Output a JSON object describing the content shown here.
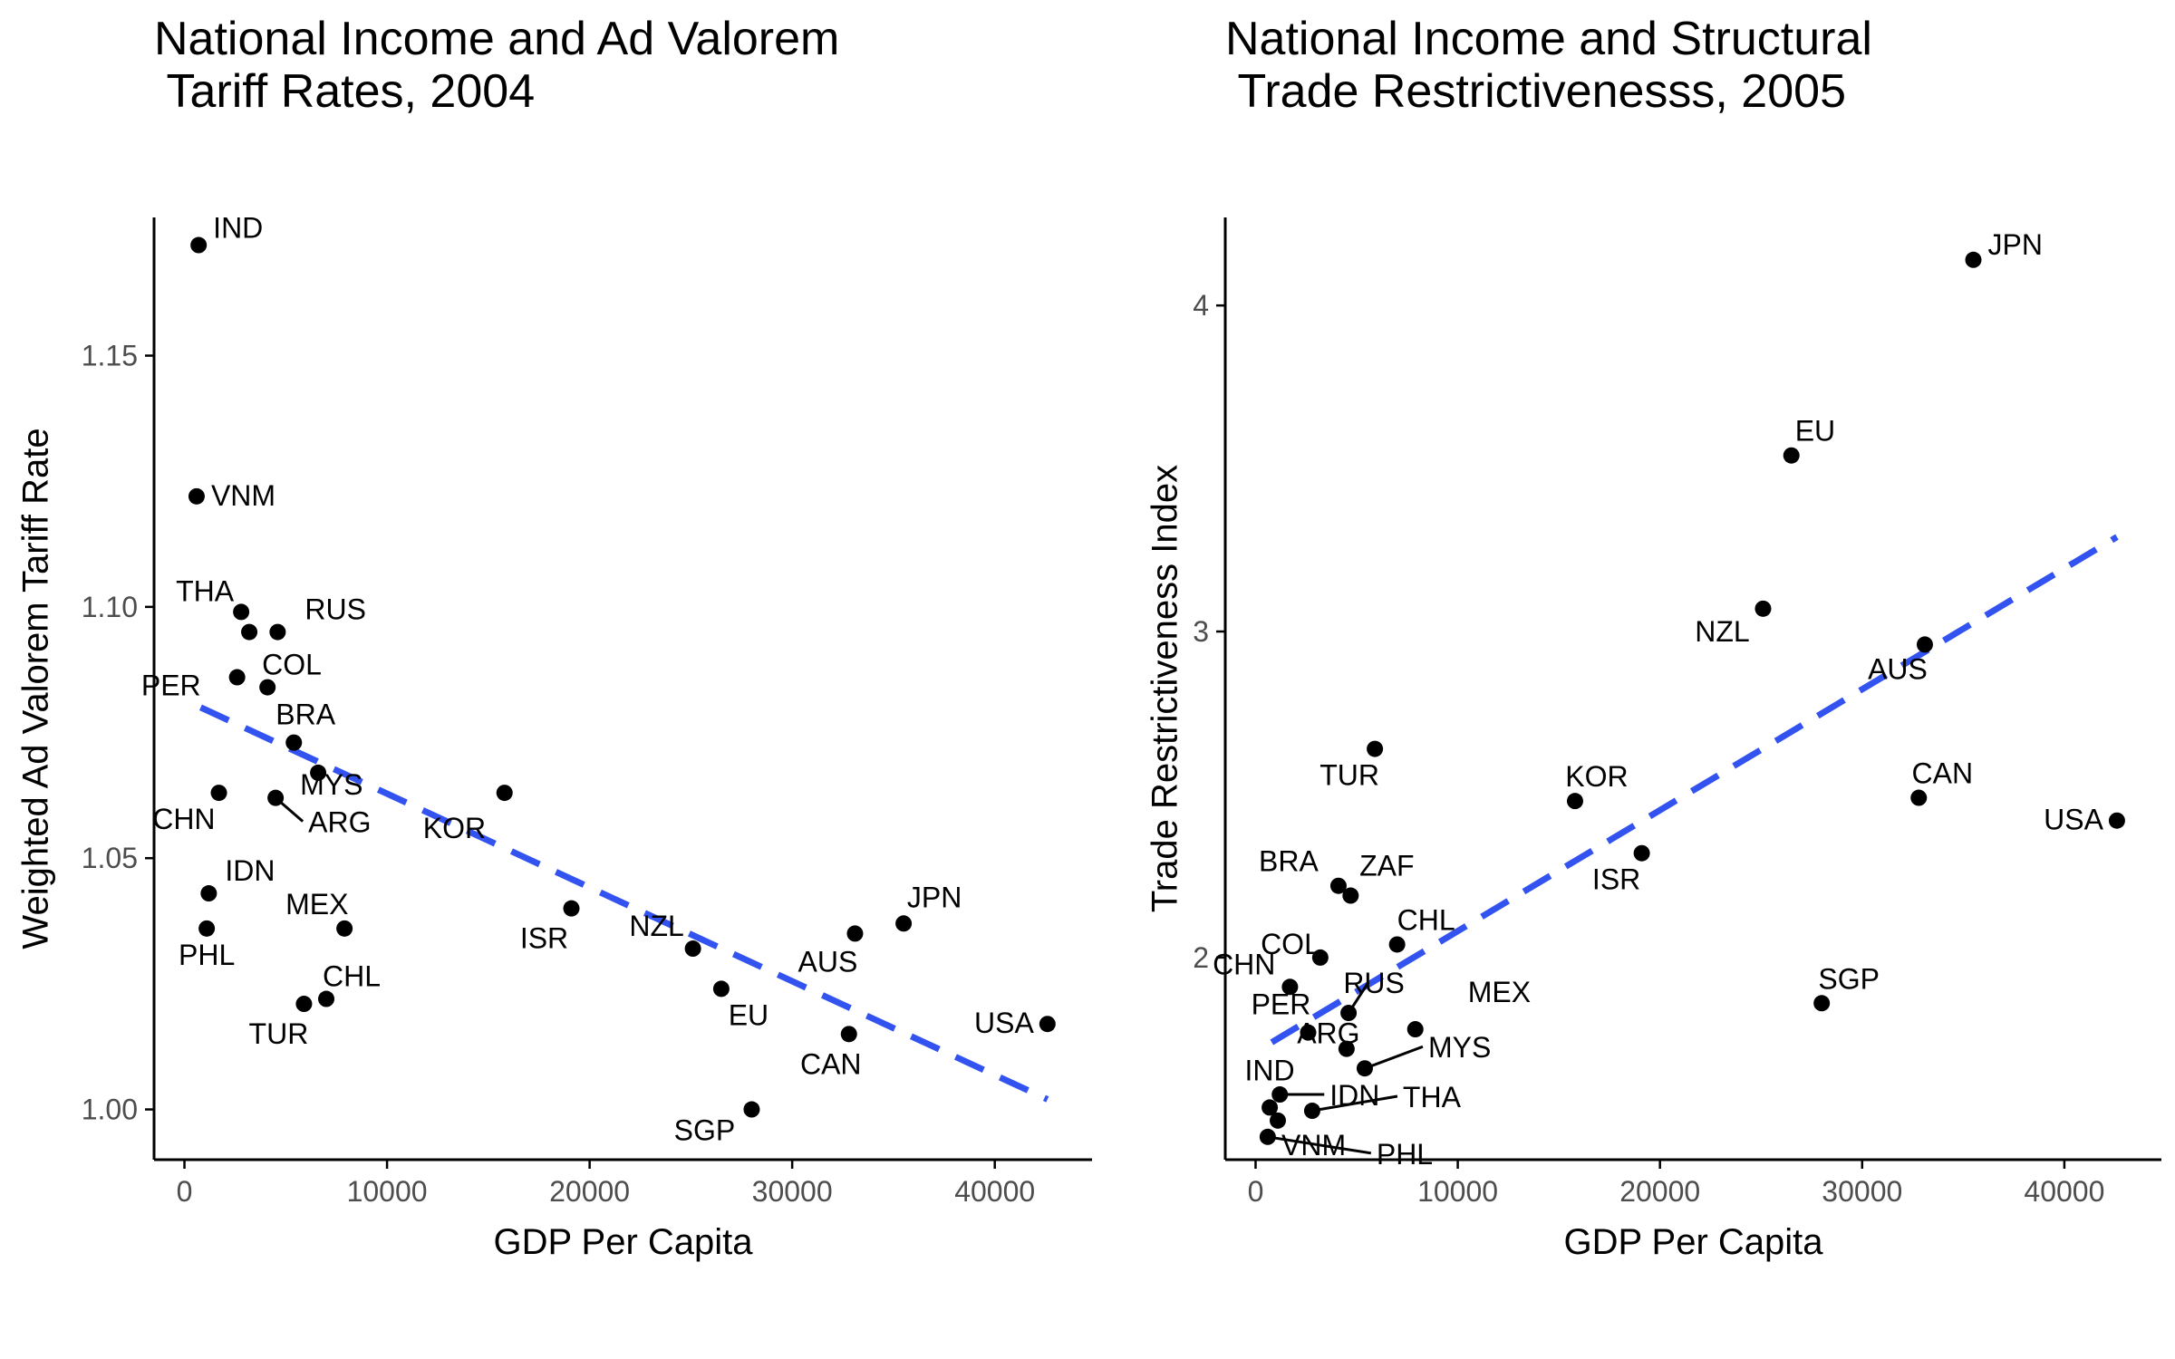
{
  "colors": {
    "point": "#000000",
    "trend": "#3353f0",
    "axis": "#000000",
    "tick_text": "#4d4d4d"
  },
  "chart_data": [
    {
      "type": "scatter",
      "title_line1": "National Income and Ad Valorem",
      "title_line2": " Tariff Rates, 2004",
      "xlabel": "GDP Per Capita",
      "ylabel": "Weighted Ad Valorem Tariff Rate",
      "xlim": [
        -1500,
        44800
      ],
      "ylim": [
        0.99,
        1.1775
      ],
      "xticks": [
        0,
        10000,
        20000,
        30000,
        40000
      ],
      "xtick_labels": [
        "0",
        "10000",
        "20000",
        "30000",
        "40000"
      ],
      "yticks": [
        1.0,
        1.05,
        1.1,
        1.15
      ],
      "ytick_labels": [
        "1.00",
        "1.05",
        "1.10",
        "1.15"
      ],
      "grid": false,
      "trend": {
        "style": "dashed",
        "x": [
          800,
          42600
        ],
        "y": [
          1.08,
          1.002
        ]
      },
      "points": [
        {
          "label": "IND",
          "x": 700,
          "y": 1.172
        },
        {
          "label": "VNM",
          "x": 600,
          "y": 1.122
        },
        {
          "label": "THA",
          "x": 2800,
          "y": 1.099
        },
        {
          "label": "RUS",
          "x": 4600,
          "y": 1.095
        },
        {
          "label": "",
          "x": 3200,
          "y": 1.095
        },
        {
          "label": "COL",
          "x": 4100,
          "y": 1.084
        },
        {
          "label": "PER",
          "x": 2600,
          "y": 1.086
        },
        {
          "label": "BRA",
          "x": 5400,
          "y": 1.073
        },
        {
          "label": "MYS",
          "x": 6600,
          "y": 1.067
        },
        {
          "label": "CHN",
          "x": 1700,
          "y": 1.063
        },
        {
          "label": "ARG",
          "x": 4500,
          "y": 1.062
        },
        {
          "label": "KOR",
          "x": 15800,
          "y": 1.063
        },
        {
          "label": "IDN",
          "x": 1200,
          "y": 1.043
        },
        {
          "label": "PHL",
          "x": 1100,
          "y": 1.036
        },
        {
          "label": "MEX",
          "x": 7900,
          "y": 1.036
        },
        {
          "label": "ISR",
          "x": 19100,
          "y": 1.04
        },
        {
          "label": "NZL",
          "x": 25100,
          "y": 1.032
        },
        {
          "label": "AUS",
          "x": 33100,
          "y": 1.035
        },
        {
          "label": "JPN",
          "x": 35500,
          "y": 1.037
        },
        {
          "label": "CHL",
          "x": 7000,
          "y": 1.022
        },
        {
          "label": "TUR",
          "x": 5900,
          "y": 1.021
        },
        {
          "label": "EU",
          "x": 26500,
          "y": 1.024
        },
        {
          "label": "USA",
          "x": 42600,
          "y": 1.017
        },
        {
          "label": "CAN",
          "x": 32800,
          "y": 1.015
        },
        {
          "label": "SGP",
          "x": 28000,
          "y": 1.0
        }
      ]
    },
    {
      "type": "scatter",
      "title_line1": "National Income and Structural",
      "title_line2": " Trade Restrictivenesss, 2005",
      "xlabel": "GDP Per Capita",
      "ylabel": "Trade Restrictiveness Index",
      "xlim": [
        -1500,
        44800
      ],
      "ylim": [
        1.38,
        4.27
      ],
      "xticks": [
        0,
        10000,
        20000,
        30000,
        40000
      ],
      "xtick_labels": [
        "0",
        "10000",
        "20000",
        "30000",
        "40000"
      ],
      "yticks": [
        2,
        3,
        4
      ],
      "ytick_labels": [
        "2",
        "3",
        "4"
      ],
      "grid": false,
      "trend": {
        "style": "dashed",
        "x": [
          800,
          42600
        ],
        "y": [
          1.74,
          3.29
        ]
      },
      "points": [
        {
          "label": "JPN",
          "x": 35500,
          "y": 4.14
        },
        {
          "label": "EU",
          "x": 26500,
          "y": 3.54
        },
        {
          "label": "NZL",
          "x": 25100,
          "y": 3.07
        },
        {
          "label": "AUS",
          "x": 33100,
          "y": 2.96
        },
        {
          "label": "TUR",
          "x": 5900,
          "y": 2.64
        },
        {
          "label": "KOR",
          "x": 15800,
          "y": 2.48
        },
        {
          "label": "CAN",
          "x": 32800,
          "y": 2.49
        },
        {
          "label": "USA",
          "x": 42600,
          "y": 2.42
        },
        {
          "label": "ISR",
          "x": 19100,
          "y": 2.32
        },
        {
          "label": "BRA",
          "x": 4100,
          "y": 2.22
        },
        {
          "label": "ZAF",
          "x": 4700,
          "y": 2.19
        },
        {
          "label": "CHL",
          "x": 7000,
          "y": 2.04
        },
        {
          "label": "COL",
          "x": 3200,
          "y": 2.0
        },
        {
          "label": "CHN",
          "x": 1700,
          "y": 1.91
        },
        {
          "label": "RUS",
          "x": 4600,
          "y": 1.83
        },
        {
          "label": "SGP",
          "x": 28000,
          "y": 1.86
        },
        {
          "label": "PER",
          "x": 2600,
          "y": 1.77
        },
        {
          "label": "ARG",
          "x": 4500,
          "y": 1.72
        },
        {
          "label": "MEX",
          "x": 7900,
          "y": 1.78
        },
        {
          "label": "MYS",
          "x": 5400,
          "y": 1.66
        },
        {
          "label": "IND",
          "x": 700,
          "y": 1.54
        },
        {
          "label": "IDN",
          "x": 1200,
          "y": 1.58
        },
        {
          "label": "THA",
          "x": 2800,
          "y": 1.53
        },
        {
          "label": "VNM",
          "x": 1100,
          "y": 1.5
        },
        {
          "label": "PHL",
          "x": 600,
          "y": 1.45
        }
      ]
    }
  ]
}
